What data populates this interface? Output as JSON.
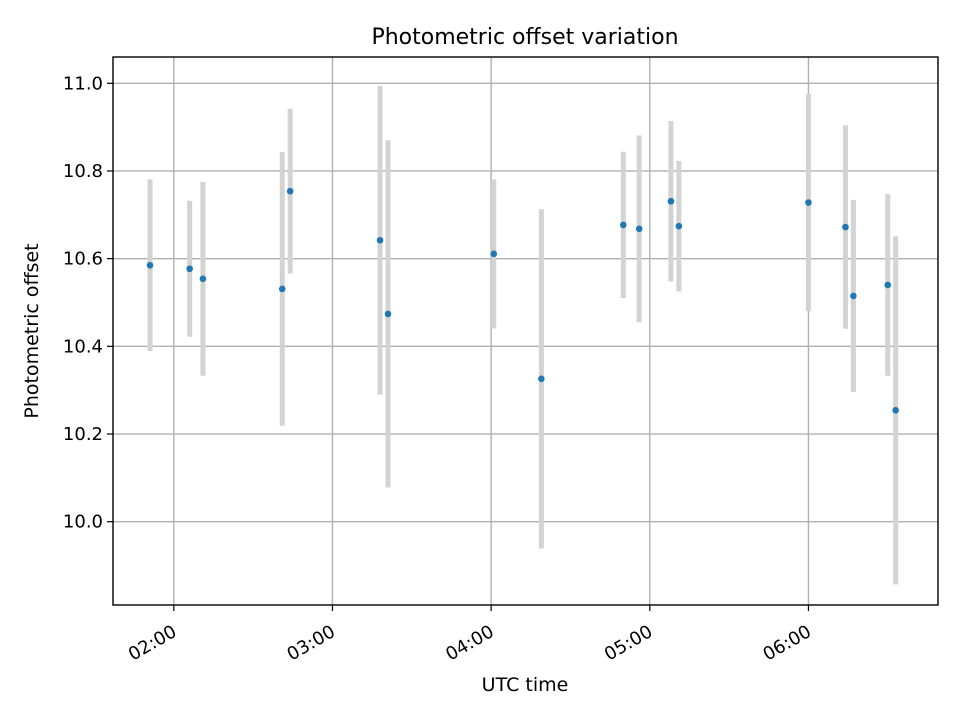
{
  "chart_data": {
    "type": "scatter",
    "title": "Photometric offset variation",
    "xlabel": "UTC time",
    "ylabel": "Photometric offset",
    "xlim": [
      "01:37",
      "06:49"
    ],
    "ylim": [
      9.81,
      11.06
    ],
    "x_ticks": [
      "02:00",
      "03:00",
      "04:00",
      "05:00",
      "06:00"
    ],
    "y_ticks": [
      "10.0",
      "10.2",
      "10.4",
      "10.6",
      "10.8",
      "11.0"
    ],
    "grid": true,
    "marker_color": "#1f77b4",
    "errorbar_color": "#d3d3d3",
    "points": [
      {
        "t": "01:51",
        "y": 10.585,
        "err": 0.196
      },
      {
        "t": "02:06",
        "y": 10.577,
        "err": 0.155
      },
      {
        "t": "02:11",
        "y": 10.554,
        "err": 0.221
      },
      {
        "t": "02:41",
        "y": 10.531,
        "err": 0.312
      },
      {
        "t": "02:44",
        "y": 10.754,
        "err": 0.188
      },
      {
        "t": "03:18",
        "y": 10.642,
        "err": 0.352
      },
      {
        "t": "03:21",
        "y": 10.474,
        "err": 0.396
      },
      {
        "t": "04:01",
        "y": 10.611,
        "err": 0.17
      },
      {
        "t": "04:19",
        "y": 10.326,
        "err": 0.387
      },
      {
        "t": "04:50",
        "y": 10.677,
        "err": 0.167
      },
      {
        "t": "04:56",
        "y": 10.668,
        "err": 0.213
      },
      {
        "t": "05:08",
        "y": 10.731,
        "err": 0.183
      },
      {
        "t": "05:11",
        "y": 10.674,
        "err": 0.149
      },
      {
        "t": "06:00",
        "y": 10.728,
        "err": 0.248
      },
      {
        "t": "06:14",
        "y": 10.672,
        "err": 0.232
      },
      {
        "t": "06:17",
        "y": 10.515,
        "err": 0.219
      },
      {
        "t": "06:30",
        "y": 10.54,
        "err": 0.207
      },
      {
        "t": "06:33",
        "y": 10.254,
        "err": 0.397
      }
    ]
  }
}
